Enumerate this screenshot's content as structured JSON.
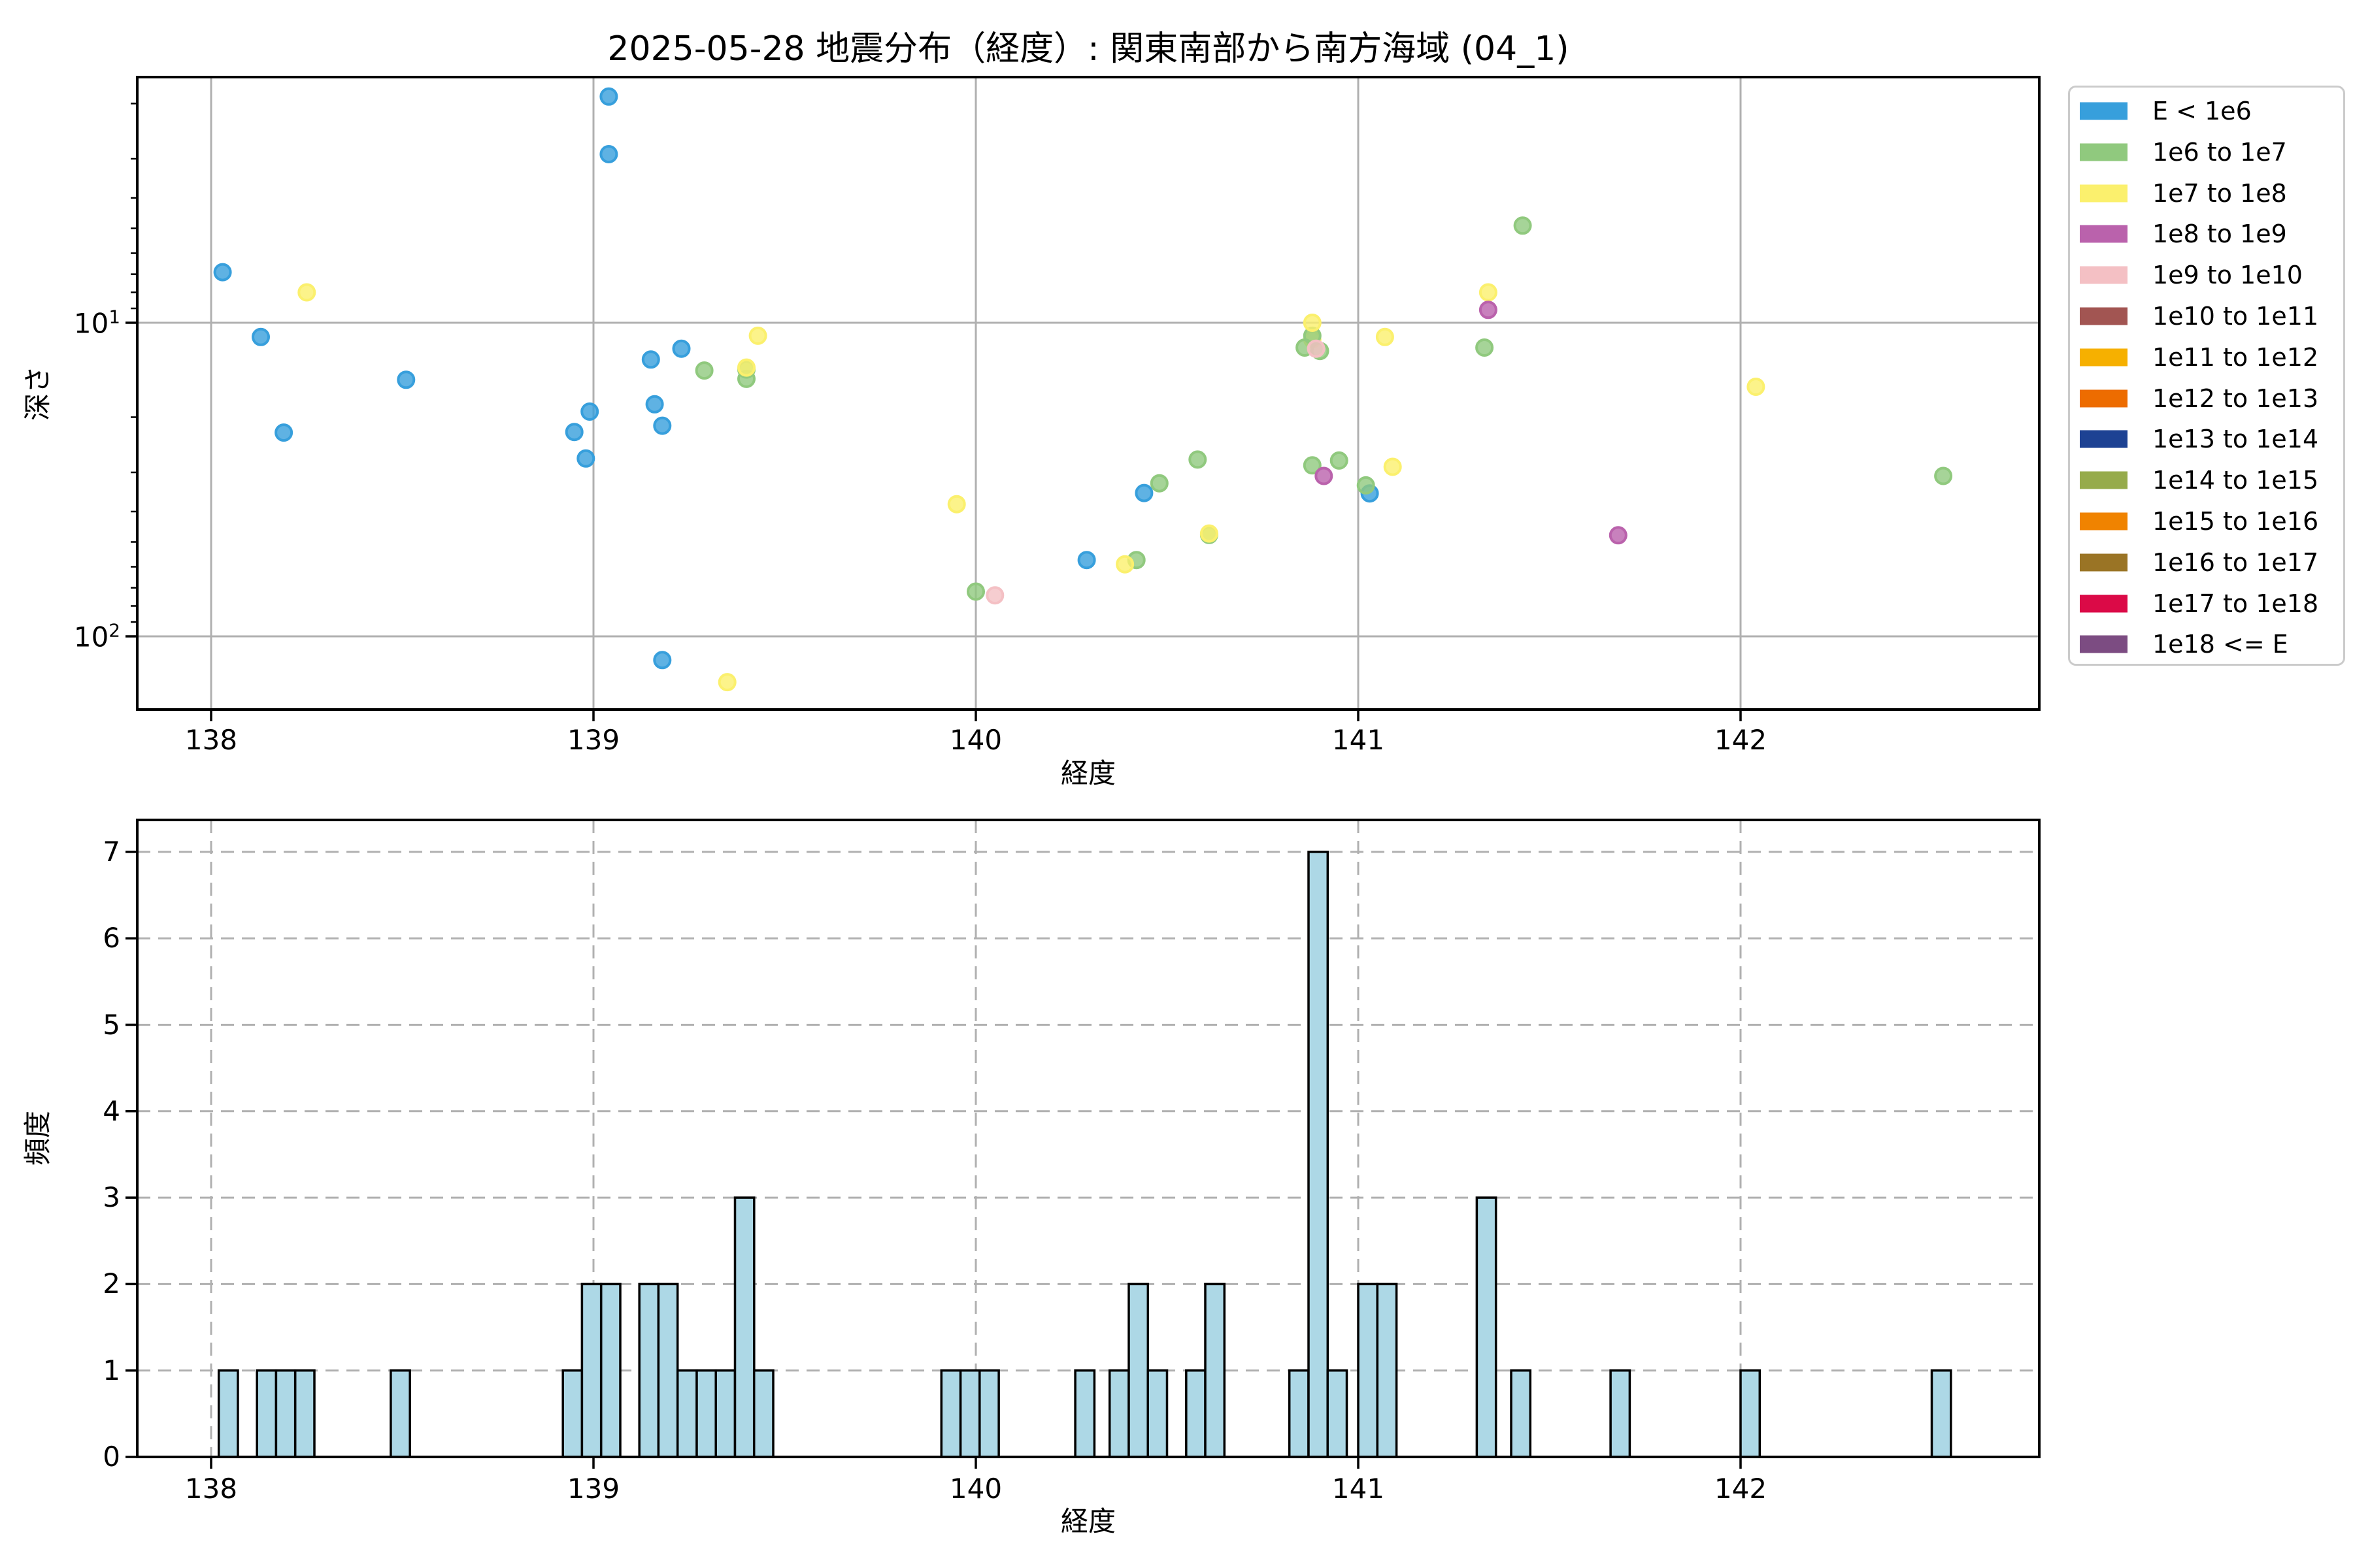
{
  "title": "2025-05-28 地震分布（経度）: 関東南部から南方海域 (04_1)",
  "legend": {
    "items": [
      {
        "label": "E < 1e6",
        "color": "#379FDC"
      },
      {
        "label": "1e6 to 1e7",
        "color": "#90C97E"
      },
      {
        "label": "1e7 to 1e8",
        "color": "#FBF06D"
      },
      {
        "label": "1e8 to 1e9",
        "color": "#BA62AC"
      },
      {
        "label": "1e9 to 1e10",
        "color": "#F4C0C4"
      },
      {
        "label": "1e10 to 1e11",
        "color": "#A25552"
      },
      {
        "label": "1e11 to 1e12",
        "color": "#F6B000"
      },
      {
        "label": "1e12 to 1e13",
        "color": "#ED6C00"
      },
      {
        "label": "1e13 to 1e14",
        "color": "#1D4293"
      },
      {
        "label": "1e14 to 1e15",
        "color": "#96AB4B"
      },
      {
        "label": "1e15 to 1e16",
        "color": "#F08300"
      },
      {
        "label": "1e16 to 1e17",
        "color": "#9A7425"
      },
      {
        "label": "1e17 to 1e18",
        "color": "#DB0A47"
      },
      {
        "label": "1e18 <= E",
        "color": "#7C4C82"
      }
    ]
  },
  "chart_data": [
    {
      "type": "scatter",
      "title": "2025-05-28 地震分布（経度）: 関東南部から南方海域 (04_1)",
      "xlabel": "経度",
      "ylabel": "深さ",
      "xlim": [
        137.81,
        142.78
      ],
      "ylim_depth": [
        1.65,
        171
      ],
      "y_scale": "log10-inverted-depth",
      "grid": "solid",
      "xticks": [
        138,
        139,
        140,
        141,
        142
      ],
      "yticks": [
        {
          "depth": 10,
          "base": "10",
          "exp": "1"
        },
        {
          "depth": 100,
          "base": "10",
          "exp": "2"
        }
      ],
      "yminor_depths": [
        2,
        3,
        4,
        5,
        6,
        7,
        8,
        9,
        20,
        30,
        40,
        50,
        60,
        70,
        80,
        90
      ],
      "palette": {
        "b": {
          "name": "E < 1e6",
          "color": "#379FDC"
        },
        "g": {
          "name": "1e6 to 1e7",
          "color": "#90C97E"
        },
        "y": {
          "name": "1e7 to 1e8",
          "color": "#FBF06D"
        },
        "m": {
          "name": "1e8 to 1e9",
          "color": "#BA62AC"
        },
        "p": {
          "name": "1e9 to 1e10",
          "color": "#F4C0C4"
        }
      },
      "marker": {
        "radius": 12,
        "stroke_width": 4,
        "fill_opacity": 0.8
      },
      "points": [
        [
          138.03,
          6.9,
          "b"
        ],
        [
          138.13,
          11.1,
          "b"
        ],
        [
          138.19,
          22.4,
          "b"
        ],
        [
          138.51,
          15.2,
          "b"
        ],
        [
          138.95,
          22.3,
          "b"
        ],
        [
          138.98,
          27.1,
          "b"
        ],
        [
          138.99,
          19.2,
          "b"
        ],
        [
          139.04,
          1.9,
          "b"
        ],
        [
          139.04,
          2.9,
          "b"
        ],
        [
          139.15,
          13.1,
          "b"
        ],
        [
          139.16,
          18.2,
          "b"
        ],
        [
          139.18,
          21.3,
          "b"
        ],
        [
          139.18,
          119,
          "b"
        ],
        [
          139.23,
          12.1,
          "b"
        ],
        [
          140.29,
          57.1,
          "b"
        ],
        [
          140.44,
          34.9,
          "b"
        ],
        [
          141.03,
          35.0,
          "b"
        ],
        [
          140.88,
          11.3,
          "y"
        ],
        [
          139.29,
          14.2,
          "g"
        ],
        [
          139.4,
          14.1,
          "g"
        ],
        [
          139.4,
          15.1,
          "g"
        ],
        [
          140.0,
          72.0,
          "g"
        ],
        [
          140.42,
          57.1,
          "g"
        ],
        [
          140.48,
          32.5,
          "g"
        ],
        [
          140.58,
          27.3,
          "g"
        ],
        [
          140.61,
          47.5,
          "g"
        ],
        [
          140.86,
          12.0,
          "g"
        ],
        [
          140.88,
          11.0,
          "g"
        ],
        [
          140.9,
          12.3,
          "g"
        ],
        [
          140.88,
          28.5,
          "g"
        ],
        [
          140.95,
          27.5,
          "g"
        ],
        [
          141.02,
          33.0,
          "g"
        ],
        [
          141.33,
          12.0,
          "g"
        ],
        [
          141.43,
          4.9,
          "g"
        ],
        [
          142.53,
          30.8,
          "g"
        ],
        [
          138.25,
          8.0,
          "y"
        ],
        [
          139.35,
          140,
          "y"
        ],
        [
          139.4,
          13.9,
          "y"
        ],
        [
          139.43,
          11.0,
          "y"
        ],
        [
          139.95,
          37.9,
          "y"
        ],
        [
          140.39,
          58.9,
          "y"
        ],
        [
          140.61,
          47.0,
          "y"
        ],
        [
          140.88,
          10.0,
          "y"
        ],
        [
          141.07,
          11.1,
          "y"
        ],
        [
          141.09,
          28.8,
          "y"
        ],
        [
          141.34,
          8.0,
          "y"
        ],
        [
          142.04,
          16.0,
          "y"
        ],
        [
          140.91,
          30.8,
          "m"
        ],
        [
          141.34,
          9.1,
          "m"
        ],
        [
          141.68,
          47.6,
          "m"
        ],
        [
          140.05,
          74.0,
          "p"
        ],
        [
          140.89,
          12.1,
          "p"
        ]
      ]
    },
    {
      "type": "bar",
      "xlabel": "経度",
      "ylabel": "頻度",
      "xlim": [
        137.81,
        142.78
      ],
      "ylim": [
        0,
        7.37
      ],
      "grid": "dashed",
      "xticks": [
        138,
        139,
        140,
        141,
        142
      ],
      "yticks": [
        0,
        1,
        2,
        3,
        4,
        5,
        6,
        7
      ],
      "bar_width": 0.05,
      "bar_color": "#ADD8E6",
      "bar_edge": "#000000",
      "bars": [
        [
          138.02,
          1
        ],
        [
          138.12,
          1
        ],
        [
          138.17,
          1
        ],
        [
          138.22,
          1
        ],
        [
          138.47,
          1
        ],
        [
          138.92,
          1
        ],
        [
          138.97,
          2
        ],
        [
          139.02,
          2
        ],
        [
          139.12,
          2
        ],
        [
          139.17,
          2
        ],
        [
          139.22,
          1
        ],
        [
          139.27,
          1
        ],
        [
          139.32,
          1
        ],
        [
          139.37,
          3
        ],
        [
          139.42,
          1
        ],
        [
          139.91,
          1
        ],
        [
          139.96,
          1
        ],
        [
          140.01,
          1
        ],
        [
          140.26,
          1
        ],
        [
          140.35,
          1
        ],
        [
          140.4,
          2
        ],
        [
          140.45,
          1
        ],
        [
          140.55,
          1
        ],
        [
          140.6,
          2
        ],
        [
          140.82,
          1
        ],
        [
          140.87,
          7
        ],
        [
          140.92,
          1
        ],
        [
          141.0,
          2
        ],
        [
          141.05,
          2
        ],
        [
          141.31,
          3
        ],
        [
          141.4,
          1
        ],
        [
          141.66,
          1
        ],
        [
          142.0,
          1
        ],
        [
          142.5,
          1
        ]
      ]
    }
  ]
}
